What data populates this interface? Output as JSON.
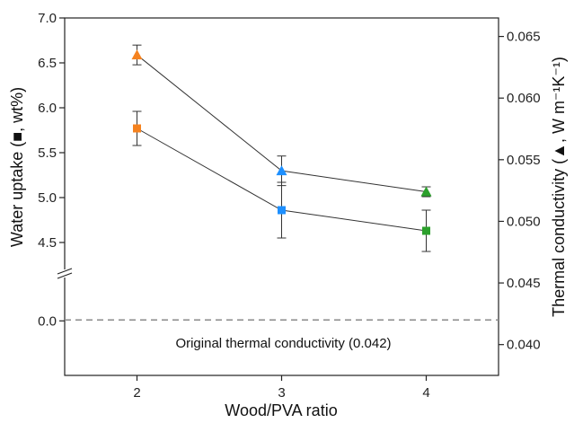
{
  "chart_data": {
    "type": "scatter",
    "xlabel": "Wood/PVA ratio",
    "ylabel_left": "Water uptake (■, wt%)",
    "ylabel_right": "Thermal conductivity (▲, W m⁻¹K⁻¹)",
    "x": [
      2,
      3,
      4
    ],
    "xlim": [
      1.5,
      4.5
    ],
    "x_ticks": [
      "2",
      "3",
      "4"
    ],
    "y_left_ticks": [
      "0.0",
      "4.5",
      "5.0",
      "5.5",
      "6.0",
      "6.5",
      "7.0"
    ],
    "y_left_upper_range": [
      4.2,
      7.0
    ],
    "y_left_lower_range": [
      -0.5,
      0.2
    ],
    "y_right_ticks": [
      "0.040",
      "0.045",
      "0.050",
      "0.055",
      "0.060",
      "0.065"
    ],
    "y_right_range": [
      0.0375,
      0.0665
    ],
    "axis_break": "left y-axis between 0.0 and 4.5",
    "grid": false,
    "legend": "none",
    "series": [
      {
        "axis": "left",
        "marker": "square",
        "values": [
          5.77,
          4.86,
          4.63
        ],
        "errors": [
          0.19,
          0.31,
          0.23
        ],
        "colors": [
          "#f5821f",
          "#1e90ff",
          "#2ca02c"
        ]
      },
      {
        "axis": "right",
        "marker": "triangle",
        "values": [
          0.0635,
          0.0541,
          0.0524
        ],
        "errors": [
          0.0008,
          0.0012,
          0.0004
        ],
        "colors": [
          "#f5821f",
          "#1e90ff",
          "#2ca02c"
        ]
      }
    ],
    "reference_line": {
      "axis": "right",
      "value": 0.042,
      "label": "Original thermal conductivity (0.042)"
    }
  }
}
